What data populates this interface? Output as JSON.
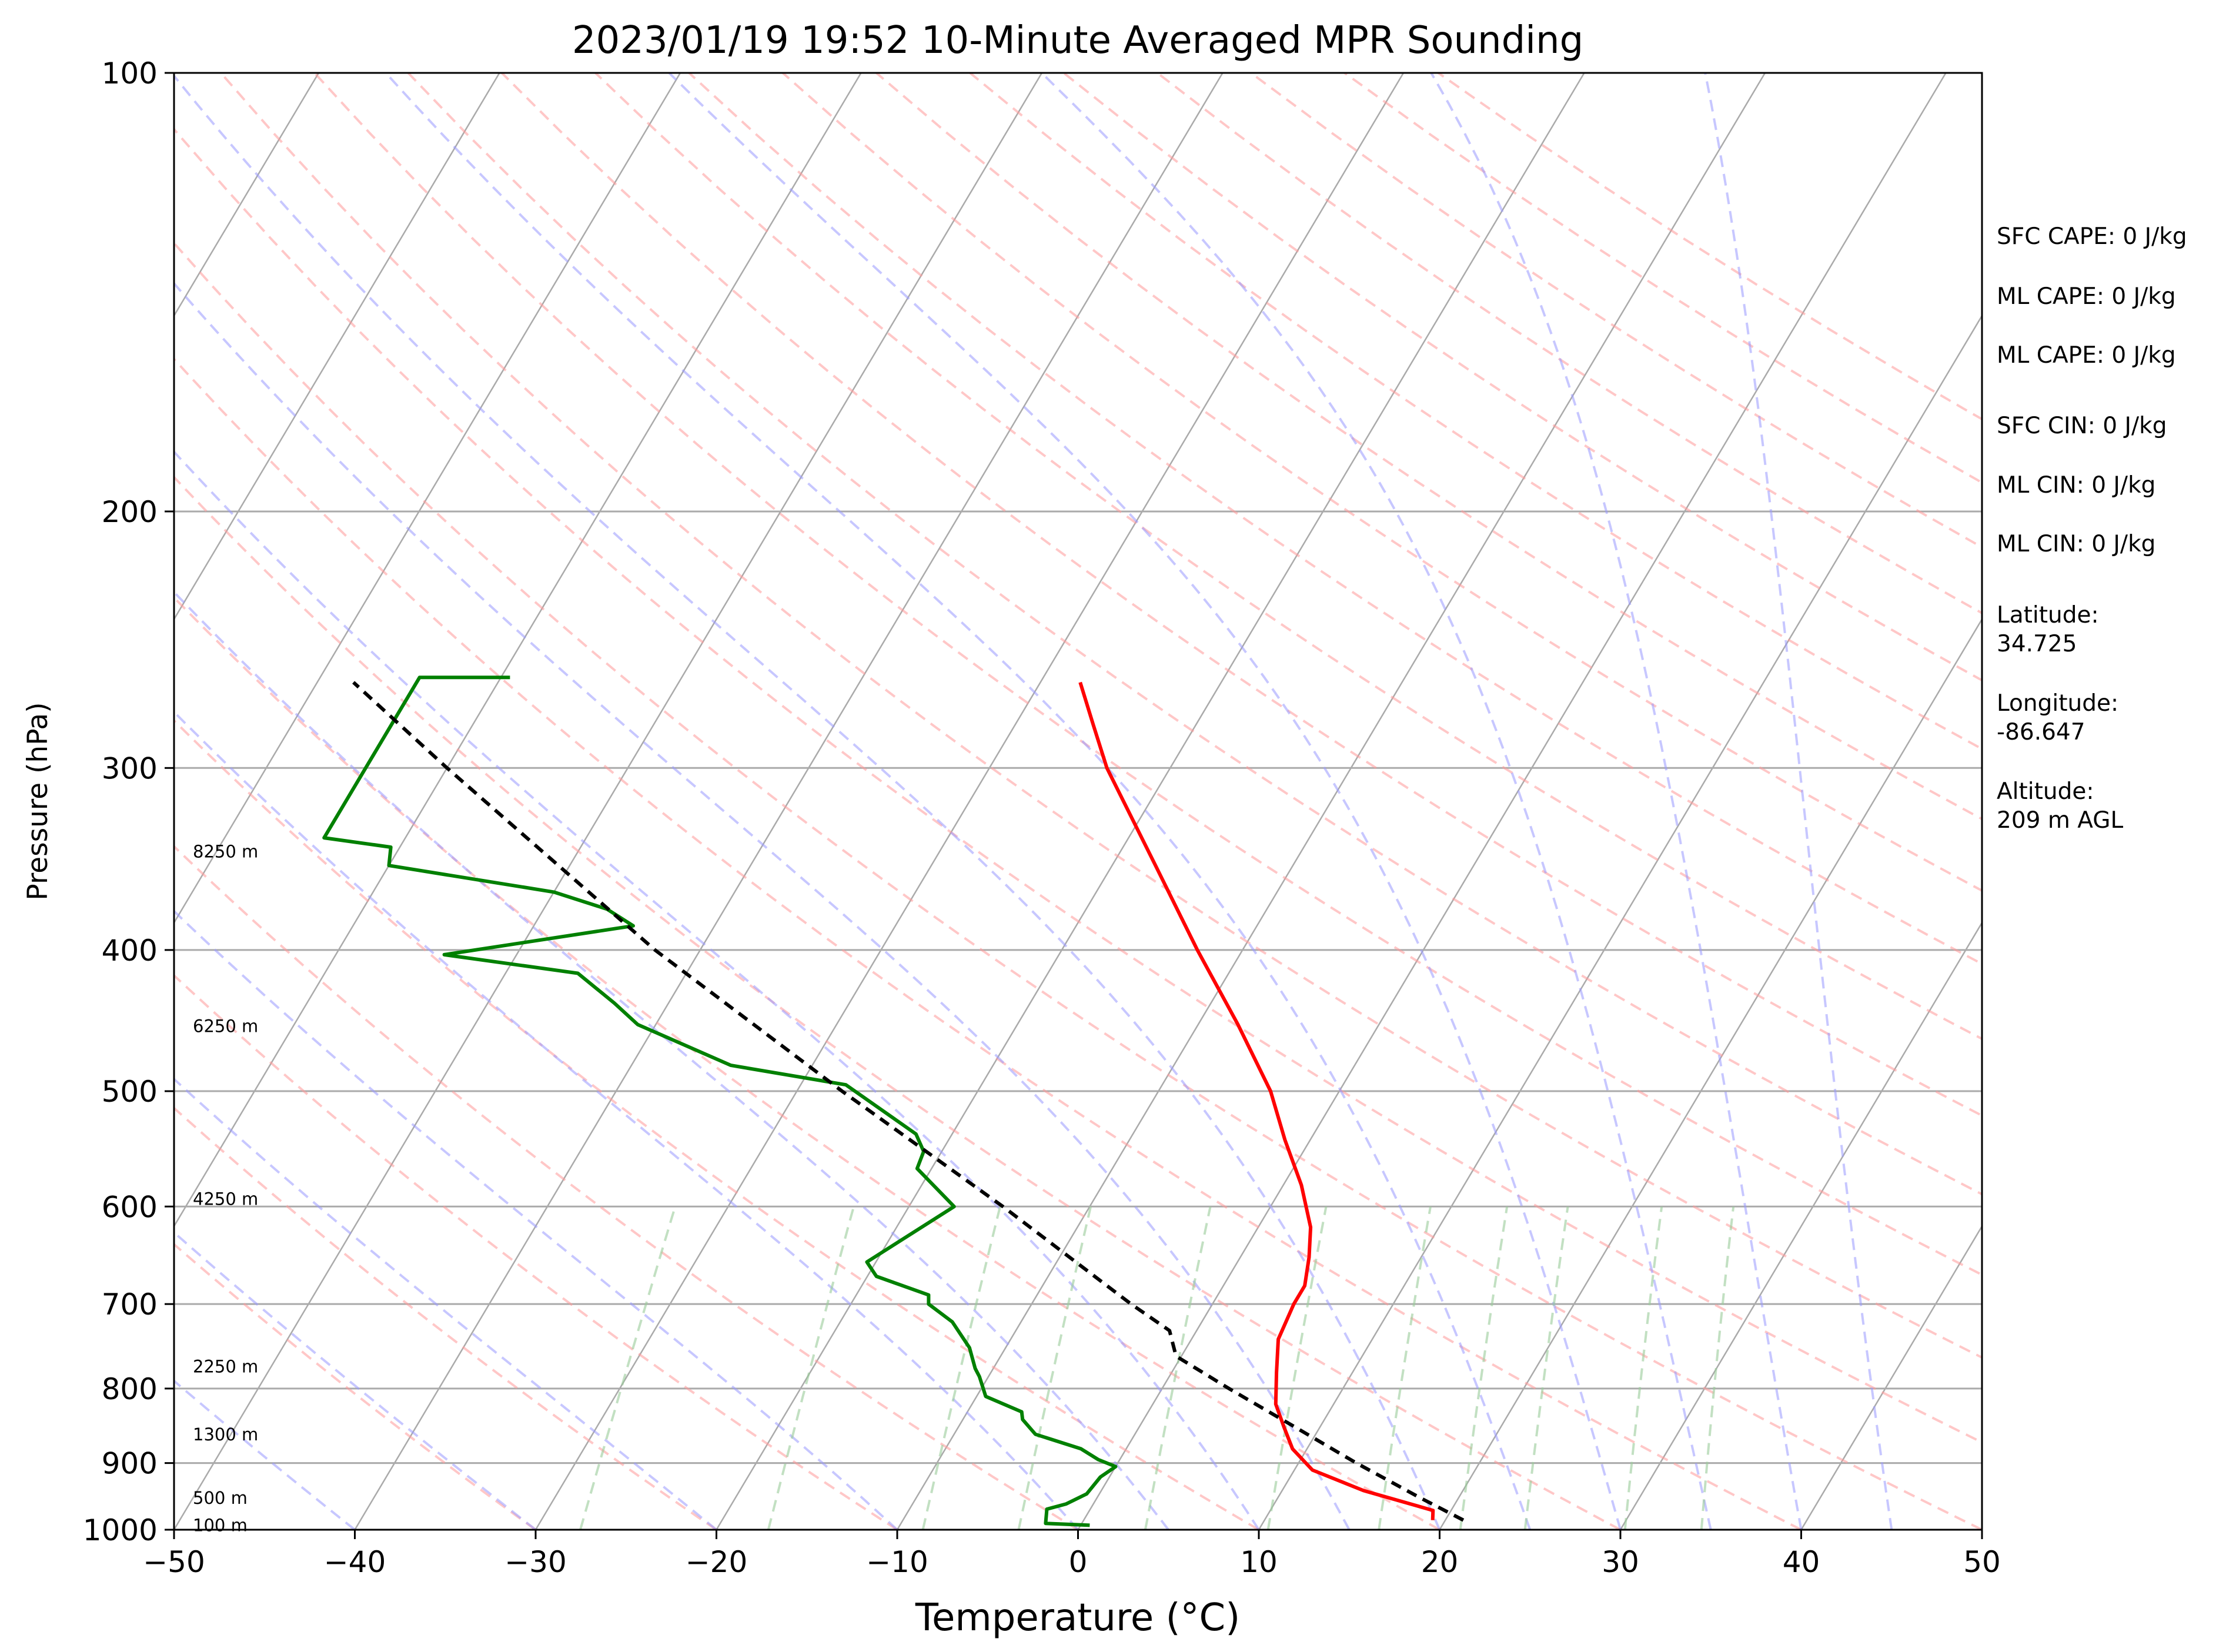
{
  "chart_data": {
    "type": "line",
    "title": "2023/01/19 19:52 10-Minute Averaged MPR Sounding",
    "xlabel": "Temperature (°C)",
    "ylabel": "Pressure (hPa)",
    "xlim": [
      -50,
      50
    ],
    "ylim": [
      1000,
      100
    ],
    "y_scale": "log",
    "grid": true,
    "x_ticks": [
      -50,
      -40,
      -30,
      -20,
      -10,
      0,
      10,
      20,
      30,
      40,
      50
    ],
    "y_ticks": [
      1000,
      900,
      800,
      700,
      600,
      500,
      400,
      300,
      200,
      100
    ],
    "skew_t": true,
    "colors": {
      "temperature": "#ff0000",
      "dewpoint": "#008000",
      "parcel": "#000000",
      "dry_adiabats": "#ff9999",
      "moist_adiabats": "#9999ff",
      "mixing_ratio": "#99cc99",
      "isotherms": "#aaaaaa",
      "isobars": "#aaaaaa"
    },
    "series": [
      {
        "key": "temperature",
        "points": [
          {
            "p": 985,
            "t": 19.3
          },
          {
            "p": 970,
            "t": 19.0
          },
          {
            "p": 940,
            "t": 14.5
          },
          {
            "p": 910,
            "t": 11.0
          },
          {
            "p": 880,
            "t": 9.2
          },
          {
            "p": 850,
            "t": 8.0
          },
          {
            "p": 820,
            "t": 6.8
          },
          {
            "p": 780,
            "t": 5.8
          },
          {
            "p": 740,
            "t": 4.8
          },
          {
            "p": 700,
            "t": 4.5
          },
          {
            "p": 680,
            "t": 4.5
          },
          {
            "p": 650,
            "t": 3.8
          },
          {
            "p": 620,
            "t": 2.9
          },
          {
            "p": 580,
            "t": 1.0
          },
          {
            "p": 540,
            "t": -1.4
          },
          {
            "p": 500,
            "t": -3.8
          },
          {
            "p": 450,
            "t": -7.8
          },
          {
            "p": 400,
            "t": -12.5
          },
          {
            "p": 350,
            "t": -17.6
          },
          {
            "p": 300,
            "t": -23.5
          },
          {
            "p": 280,
            "t": -25.7
          },
          {
            "p": 262,
            "t": -27.8
          }
        ]
      },
      {
        "key": "dewpoint",
        "points": [
          {
            "p": 993,
            "t": 0.5
          },
          {
            "p": 990,
            "t": -2.0
          },
          {
            "p": 968,
            "t": -2.4
          },
          {
            "p": 960,
            "t": -1.5
          },
          {
            "p": 945,
            "t": -0.7
          },
          {
            "p": 920,
            "t": -0.5
          },
          {
            "p": 905,
            "t": 0.0
          },
          {
            "p": 895,
            "t": -1.2
          },
          {
            "p": 880,
            "t": -2.5
          },
          {
            "p": 860,
            "t": -5.5
          },
          {
            "p": 840,
            "t": -6.7
          },
          {
            "p": 830,
            "t": -7.0
          },
          {
            "p": 810,
            "t": -9.5
          },
          {
            "p": 785,
            "t": -10.5
          },
          {
            "p": 775,
            "t": -11.0
          },
          {
            "p": 750,
            "t": -12.0
          },
          {
            "p": 720,
            "t": -13.8
          },
          {
            "p": 700,
            "t": -15.7
          },
          {
            "p": 690,
            "t": -16.0
          },
          {
            "p": 670,
            "t": -19.5
          },
          {
            "p": 655,
            "t": -20.5
          },
          {
            "p": 600,
            "t": -17.5
          },
          {
            "p": 565,
            "t": -20.8
          },
          {
            "p": 550,
            "t": -21.0
          },
          {
            "p": 535,
            "t": -22.0
          },
          {
            "p": 495,
            "t": -27.5
          },
          {
            "p": 480,
            "t": -34.5
          },
          {
            "p": 450,
            "t": -41.0
          },
          {
            "p": 435,
            "t": -43.0
          },
          {
            "p": 415,
            "t": -46.0
          },
          {
            "p": 403,
            "t": -54.0
          },
          {
            "p": 385,
            "t": -44.5
          },
          {
            "p": 375,
            "t": -46.5
          },
          {
            "p": 365,
            "t": -50.0
          },
          {
            "p": 350,
            "t": -60.0
          },
          {
            "p": 340,
            "t": -60.5
          },
          {
            "p": 335,
            "t": -64.5
          },
          {
            "p": 260,
            "t": -64.5
          },
          {
            "p": 260,
            "t": -59.5
          }
        ]
      },
      {
        "key": "parcel",
        "points": [
          {
            "p": 985,
            "t": 21.0
          },
          {
            "p": 950,
            "t": 17.8
          },
          {
            "p": 900,
            "t": 13.2
          },
          {
            "p": 850,
            "t": 8.6
          },
          {
            "p": 800,
            "t": 3.7
          },
          {
            "p": 760,
            "t": -0.3
          },
          {
            "p": 730,
            "t": -1.5
          },
          {
            "p": 700,
            "t": -4.5
          },
          {
            "p": 600,
            "t": -14.8
          },
          {
            "p": 500,
            "t": -27.5
          },
          {
            "p": 400,
            "t": -42.5
          },
          {
            "p": 300,
            "t": -60.0
          },
          {
            "p": 262,
            "t": -68.0
          }
        ]
      }
    ],
    "height_labels": [
      {
        "p": 995,
        "text": "100 m"
      },
      {
        "p": 953,
        "text": "500 m"
      },
      {
        "p": 862,
        "text": "1300 m"
      },
      {
        "p": 774,
        "text": "2250 m"
      },
      {
        "p": 594,
        "text": "4250 m"
      },
      {
        "p": 452,
        "text": "6250 m"
      },
      {
        "p": 343,
        "text": "8250 m"
      }
    ]
  },
  "info": {
    "sfc_cape": "SFC CAPE: 0 J/kg",
    "ml_cape_1": "ML CAPE: 0 J/kg",
    "ml_cape_2": "ML CAPE: 0 J/kg",
    "sfc_cin": "SFC CIN: 0 J/kg",
    "ml_cin_1": "ML CIN: 0 J/kg",
    "ml_cin_2": "ML CIN: 0 J/kg",
    "lat_label": "Latitude:",
    "lat_value": "34.725",
    "lon_label": "Longitude:",
    "lon_value": "-86.647",
    "alt_label": "Altitude:",
    "alt_value": "209 m AGL"
  }
}
